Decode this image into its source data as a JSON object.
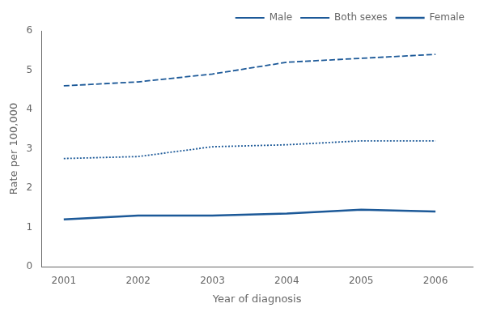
{
  "chart_data": {
    "type": "line",
    "x": [
      2001,
      2002,
      2003,
      2004,
      2005,
      2006
    ],
    "series": [
      {
        "name": "Male",
        "color": "#1c5998",
        "line_style": "dashed",
        "values": [
          4.6,
          4.7,
          4.9,
          5.2,
          5.3,
          5.4
        ]
      },
      {
        "name": "Both sexes",
        "color": "#1c5998",
        "line_style": "dotted",
        "values": [
          2.75,
          2.8,
          3.05,
          3.1,
          3.2,
          3.2
        ]
      },
      {
        "name": "Female",
        "color": "#1c5998",
        "line_style": "solid",
        "values": [
          1.2,
          1.3,
          1.3,
          1.35,
          1.45,
          1.4
        ]
      }
    ],
    "xlabel": "Year of diagnosis",
    "ylabel": "Rate per 100,000",
    "xlim": [
      2000.7,
      2006.5
    ],
    "xticks": [
      2001,
      2002,
      2003,
      2004,
      2005,
      2006
    ],
    "ylim": [
      0,
      6
    ],
    "yticks": [
      0,
      1,
      2,
      3,
      4,
      5,
      6
    ],
    "grid": false,
    "legend": "upper right"
  }
}
